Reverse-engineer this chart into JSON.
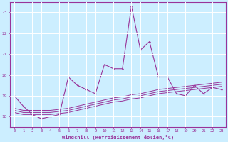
{
  "xlabel": "Windchill (Refroidissement éolien,°C)",
  "background_color": "#cceeff",
  "grid_color": "#ffffff",
  "line_color": "#993399",
  "xlim": [
    -0.5,
    23.5
  ],
  "ylim": [
    17.5,
    23.5
  ],
  "yticks": [
    18,
    19,
    20,
    21,
    22,
    23
  ],
  "xticks": [
    0,
    1,
    2,
    3,
    4,
    5,
    6,
    7,
    8,
    9,
    10,
    11,
    12,
    13,
    14,
    15,
    16,
    17,
    18,
    19,
    20,
    21,
    22,
    23
  ],
  "series": [
    [
      19.0,
      18.5,
      18.1,
      17.9,
      18.0,
      18.1,
      19.9,
      19.5,
      19.3,
      19.1,
      20.5,
      20.3,
      20.3,
      23.3,
      21.2,
      21.6,
      19.9,
      19.9,
      19.1,
      19.0,
      19.5,
      19.1,
      19.4,
      19.3
    ],
    [
      18.2,
      18.1,
      18.1,
      18.1,
      18.1,
      18.15,
      18.2,
      18.3,
      18.4,
      18.5,
      18.6,
      18.7,
      18.75,
      18.85,
      18.9,
      19.0,
      19.1,
      19.15,
      19.2,
      19.25,
      19.3,
      19.35,
      19.4,
      19.45
    ],
    [
      18.3,
      18.2,
      18.2,
      18.2,
      18.2,
      18.25,
      18.3,
      18.4,
      18.5,
      18.6,
      18.7,
      18.8,
      18.85,
      18.95,
      19.0,
      19.1,
      19.2,
      19.25,
      19.3,
      19.35,
      19.4,
      19.45,
      19.5,
      19.55
    ],
    [
      18.4,
      18.3,
      18.3,
      18.3,
      18.3,
      18.35,
      18.4,
      18.5,
      18.6,
      18.7,
      18.8,
      18.9,
      18.95,
      19.05,
      19.1,
      19.2,
      19.3,
      19.35,
      19.4,
      19.45,
      19.5,
      19.55,
      19.6,
      19.65
    ]
  ]
}
